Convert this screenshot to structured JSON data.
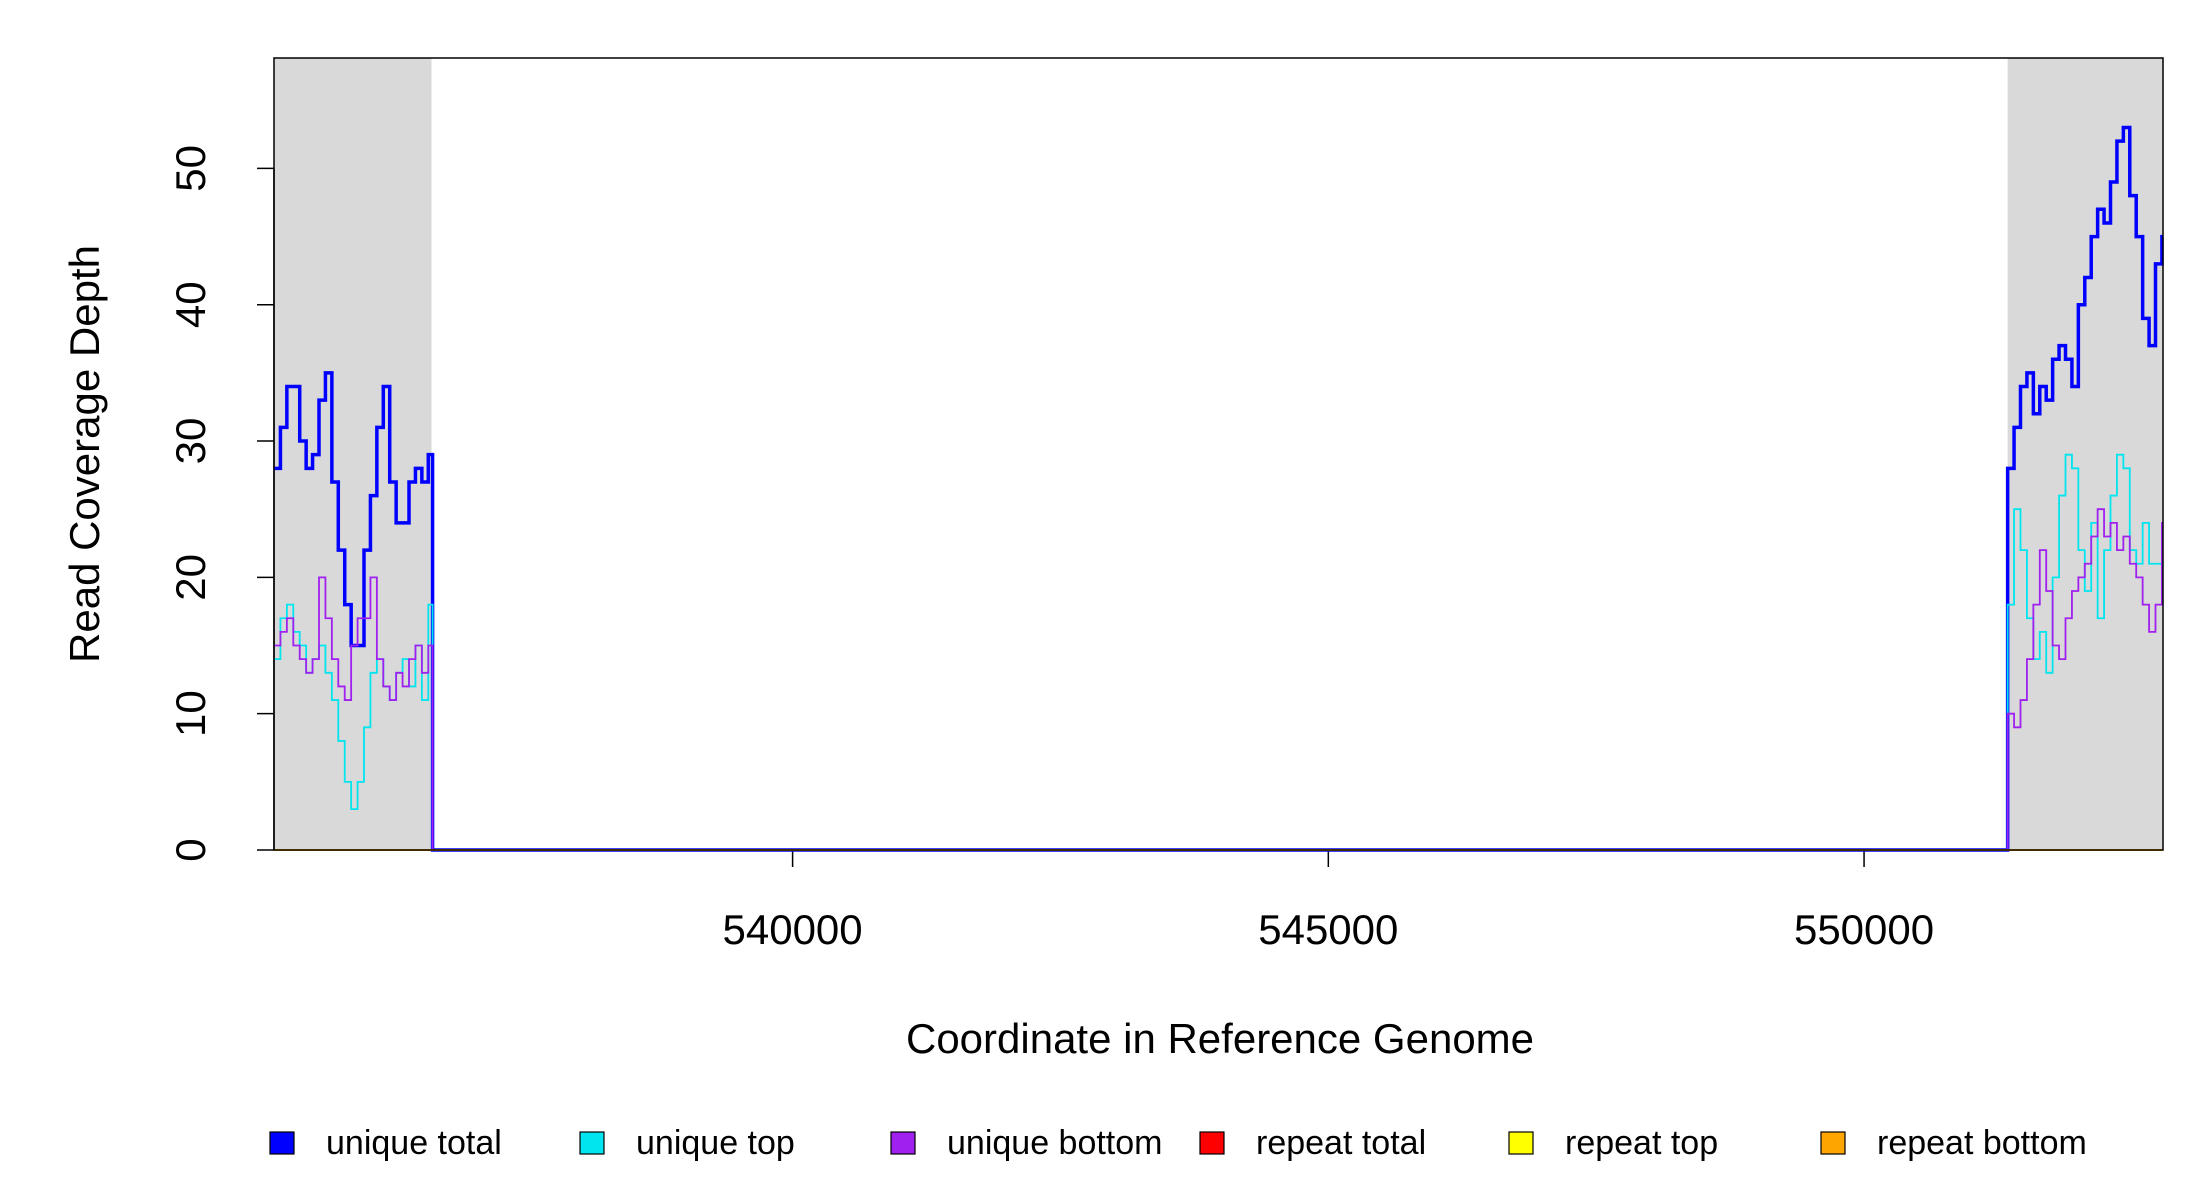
{
  "chart_data": {
    "type": "step",
    "x_label": "Coordinate in Reference Genome",
    "y_label": "Read Coverage Depth",
    "xlim": [
      535160,
      552790
    ],
    "ylim": [
      0,
      58.1
    ],
    "xticks": [
      540000,
      545000,
      550000
    ],
    "yticks": [
      0,
      10,
      20,
      30,
      40,
      50
    ],
    "highlight_regions": [
      [
        535160,
        536630
      ],
      [
        551340,
        552790
      ]
    ],
    "highlight_color": "#d9d9d9",
    "x": [
      535160,
      535220,
      535280,
      535340,
      535400,
      535460,
      535520,
      535580,
      535640,
      535700,
      535760,
      535820,
      535880,
      535940,
      536000,
      536060,
      536120,
      536180,
      536240,
      536300,
      536360,
      536420,
      536480,
      536540,
      536600,
      536640,
      551340,
      551400,
      551460,
      551520,
      551580,
      551640,
      551700,
      551760,
      551820,
      551880,
      551940,
      552000,
      552060,
      552120,
      552180,
      552240,
      552300,
      552360,
      552420,
      552480,
      552540,
      552600,
      552660,
      552720,
      552780
    ],
    "series": [
      {
        "name": "unique total",
        "color": "#0000ff",
        "values": [
          28,
          31,
          34,
          34,
          30,
          28,
          29,
          33,
          35,
          27,
          22,
          18,
          15,
          15,
          22,
          26,
          31,
          34,
          27,
          24,
          24,
          27,
          28,
          27,
          29,
          0,
          28,
          31,
          34,
          35,
          32,
          34,
          33,
          36,
          37,
          36,
          34,
          40,
          42,
          45,
          47,
          46,
          49,
          52,
          53,
          48,
          45,
          39,
          37,
          43,
          45
        ]
      },
      {
        "name": "unique top",
        "color": "#00e5ee",
        "values": [
          14,
          17,
          18,
          16,
          15,
          13,
          14,
          15,
          13,
          11,
          8,
          5,
          3,
          5,
          9,
          13,
          14,
          12,
          11,
          13,
          14,
          12,
          15,
          11,
          18,
          0,
          18,
          25,
          22,
          17,
          14,
          16,
          13,
          20,
          26,
          29,
          28,
          22,
          19,
          24,
          17,
          22,
          26,
          29,
          28,
          22,
          21,
          24,
          21,
          21,
          22
        ]
      },
      {
        "name": "unique bottom",
        "color": "#a020f0",
        "values": [
          15,
          16,
          17,
          15,
          14,
          13,
          14,
          20,
          17,
          14,
          12,
          11,
          15,
          17,
          17,
          20,
          14,
          12,
          11,
          13,
          12,
          14,
          15,
          13,
          15,
          0,
          10,
          9,
          11,
          14,
          18,
          22,
          19,
          15,
          14,
          17,
          19,
          20,
          21,
          23,
          25,
          23,
          24,
          22,
          23,
          21,
          20,
          18,
          16,
          18,
          24
        ]
      },
      {
        "name": "repeat total",
        "color": "#ff0000",
        "values": [
          0,
          0,
          0,
          0,
          0,
          0,
          0,
          0,
          0,
          0,
          0,
          0,
          0,
          0,
          0,
          0,
          0,
          0,
          0,
          0,
          0,
          0,
          0,
          0,
          0,
          0,
          0,
          0,
          0,
          0,
          0,
          0,
          0,
          0,
          0,
          0,
          0,
          0,
          0,
          0,
          0,
          0,
          0,
          0,
          0,
          0,
          0,
          0,
          0,
          0,
          0
        ]
      },
      {
        "name": "repeat top",
        "color": "#ffff00",
        "values": [
          0,
          0,
          0,
          0,
          0,
          0,
          0,
          0,
          0,
          0,
          0,
          0,
          0,
          0,
          0,
          0,
          0,
          0,
          0,
          0,
          0,
          0,
          0,
          0,
          0,
          0,
          0,
          0,
          0,
          0,
          0,
          0,
          0,
          0,
          0,
          0,
          0,
          0,
          0,
          0,
          0,
          0,
          0,
          0,
          0,
          0,
          0,
          0,
          0,
          0,
          0
        ]
      },
      {
        "name": "repeat bottom",
        "color": "#ffa500",
        "values": [
          0,
          0,
          0,
          0,
          0,
          0,
          0,
          0,
          0,
          0,
          0,
          0,
          0,
          0,
          0,
          0,
          0,
          0,
          0,
          0,
          0,
          0,
          0,
          0,
          0,
          0,
          0,
          0,
          0,
          0,
          0,
          0,
          0,
          0,
          0,
          0,
          0,
          0,
          0,
          0,
          0,
          0,
          0,
          0,
          0,
          0,
          0,
          0,
          0,
          0,
          0
        ]
      }
    ]
  }
}
